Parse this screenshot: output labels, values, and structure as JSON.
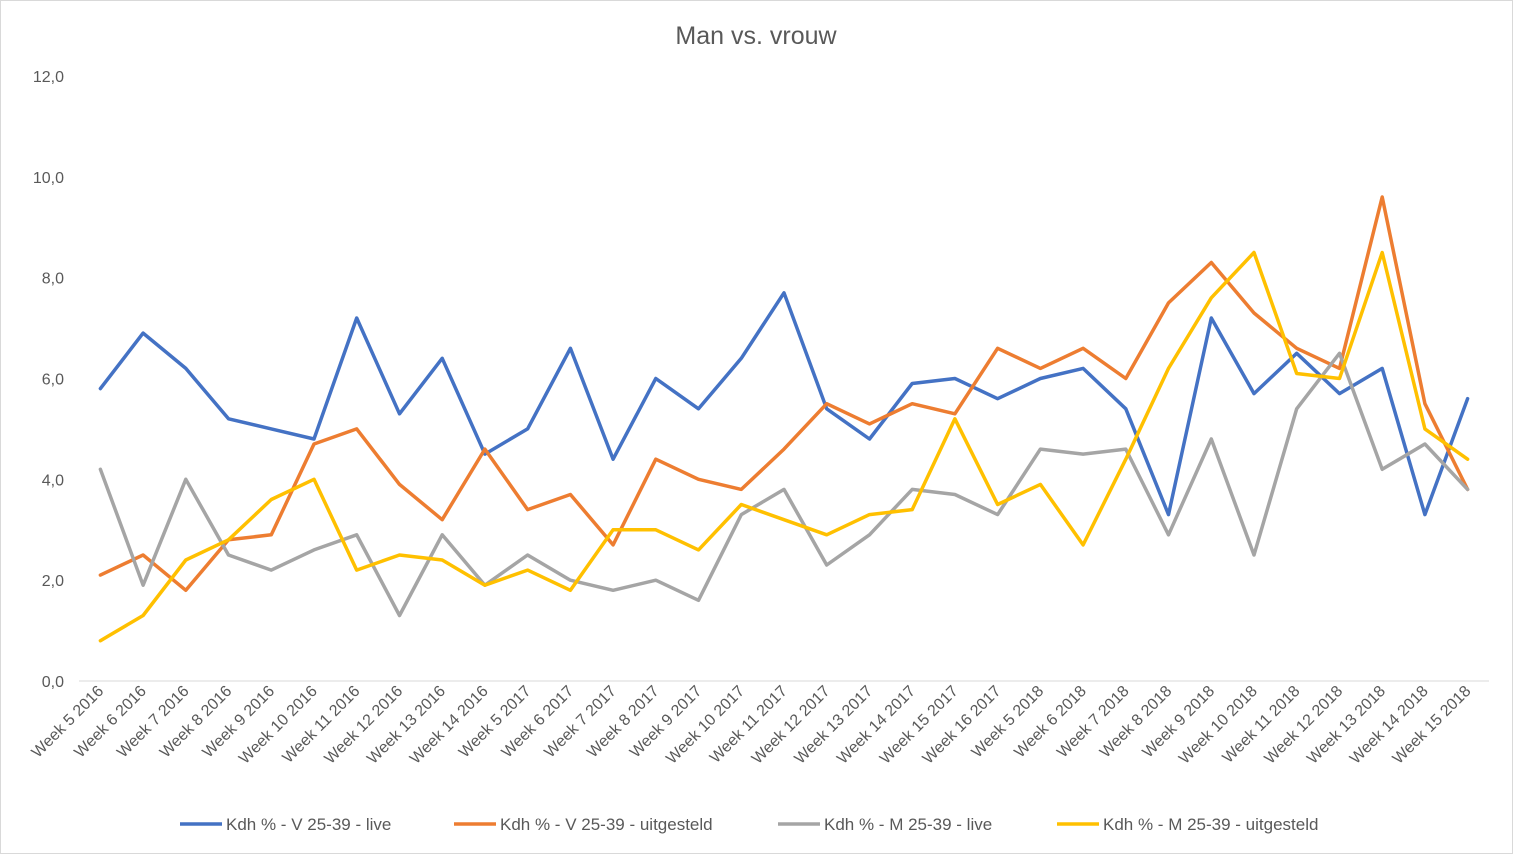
{
  "chart_data": {
    "type": "line",
    "title": "Man vs. vrouw",
    "xlabel": "",
    "ylabel": "",
    "ylim": [
      0,
      12
    ],
    "y_ticks": [
      "0,0",
      "2,0",
      "4,0",
      "6,0",
      "8,0",
      "10,0",
      "12,0"
    ],
    "grid": false,
    "legend_position": "bottom",
    "categories": [
      "Week 5 2016",
      "Week 6 2016",
      "Week 7 2016",
      "Week 8 2016",
      "Week 9 2016",
      "Week 10 2016",
      "Week 11 2016",
      "Week 12 2016",
      "Week 13 2016",
      "Week 14 2016",
      "Week 5 2017",
      "Week 6 2017",
      "Week 7 2017",
      "Week 8 2017",
      "Week 9 2017",
      "Week 10 2017",
      "Week 11 2017",
      "Week 12 2017",
      "Week 13 2017",
      "Week 14 2017",
      "Week 15 2017",
      "Week 16 2017",
      "Week 5 2018",
      "Week 6 2018",
      "Week 7 2018",
      "Week 8 2018",
      "Week 9 2018",
      "Week 10 2018",
      "Week 11 2018",
      "Week 12 2018",
      "Week 13 2018",
      "Week 14 2018",
      "Week 15 2018"
    ],
    "series": [
      {
        "name": "Kdh % - V 25-39 - live",
        "color": "#4472C4",
        "values": [
          5.8,
          6.9,
          6.2,
          5.2,
          5.0,
          4.8,
          7.2,
          5.3,
          6.4,
          4.5,
          5.0,
          6.6,
          4.4,
          6.0,
          5.4,
          6.4,
          7.7,
          5.4,
          4.8,
          5.9,
          6.0,
          5.6,
          6.0,
          6.2,
          5.4,
          3.3,
          7.2,
          5.7,
          6.5,
          5.7,
          6.2,
          3.3,
          5.6
        ]
      },
      {
        "name": "Kdh % - V 25-39 - uitgesteld",
        "color": "#ED7D31",
        "values": [
          2.1,
          2.5,
          1.8,
          2.8,
          2.9,
          4.7,
          5.0,
          3.9,
          3.2,
          4.6,
          3.4,
          3.7,
          2.7,
          4.4,
          4.0,
          3.8,
          4.6,
          5.5,
          5.1,
          5.5,
          5.3,
          6.6,
          6.2,
          6.6,
          6.0,
          7.5,
          8.3,
          7.3,
          6.6,
          6.2,
          9.6,
          5.5,
          3.8
        ]
      },
      {
        "name": "Kdh % - M 25-39 - live",
        "color": "#A5A5A5",
        "values": [
          4.2,
          1.9,
          4.0,
          2.5,
          2.2,
          2.6,
          2.9,
          1.3,
          2.9,
          1.9,
          2.5,
          2.0,
          1.8,
          2.0,
          1.6,
          3.3,
          3.8,
          2.3,
          2.9,
          3.8,
          3.7,
          3.3,
          4.6,
          4.5,
          4.6,
          2.9,
          4.8,
          2.5,
          5.4,
          6.5,
          4.2,
          4.7,
          3.8
        ]
      },
      {
        "name": "Kdh % - M 25-39 - uitgesteld",
        "color": "#FFC000",
        "values": [
          0.8,
          1.3,
          2.4,
          2.8,
          3.6,
          4.0,
          2.2,
          2.5,
          2.4,
          1.9,
          2.2,
          1.8,
          3.0,
          3.0,
          2.6,
          3.5,
          3.2,
          2.9,
          3.3,
          3.4,
          5.2,
          3.5,
          3.9,
          2.7,
          4.4,
          6.2,
          7.6,
          8.5,
          6.1,
          6.0,
          8.5,
          5.0,
          4.4
        ]
      }
    ]
  }
}
